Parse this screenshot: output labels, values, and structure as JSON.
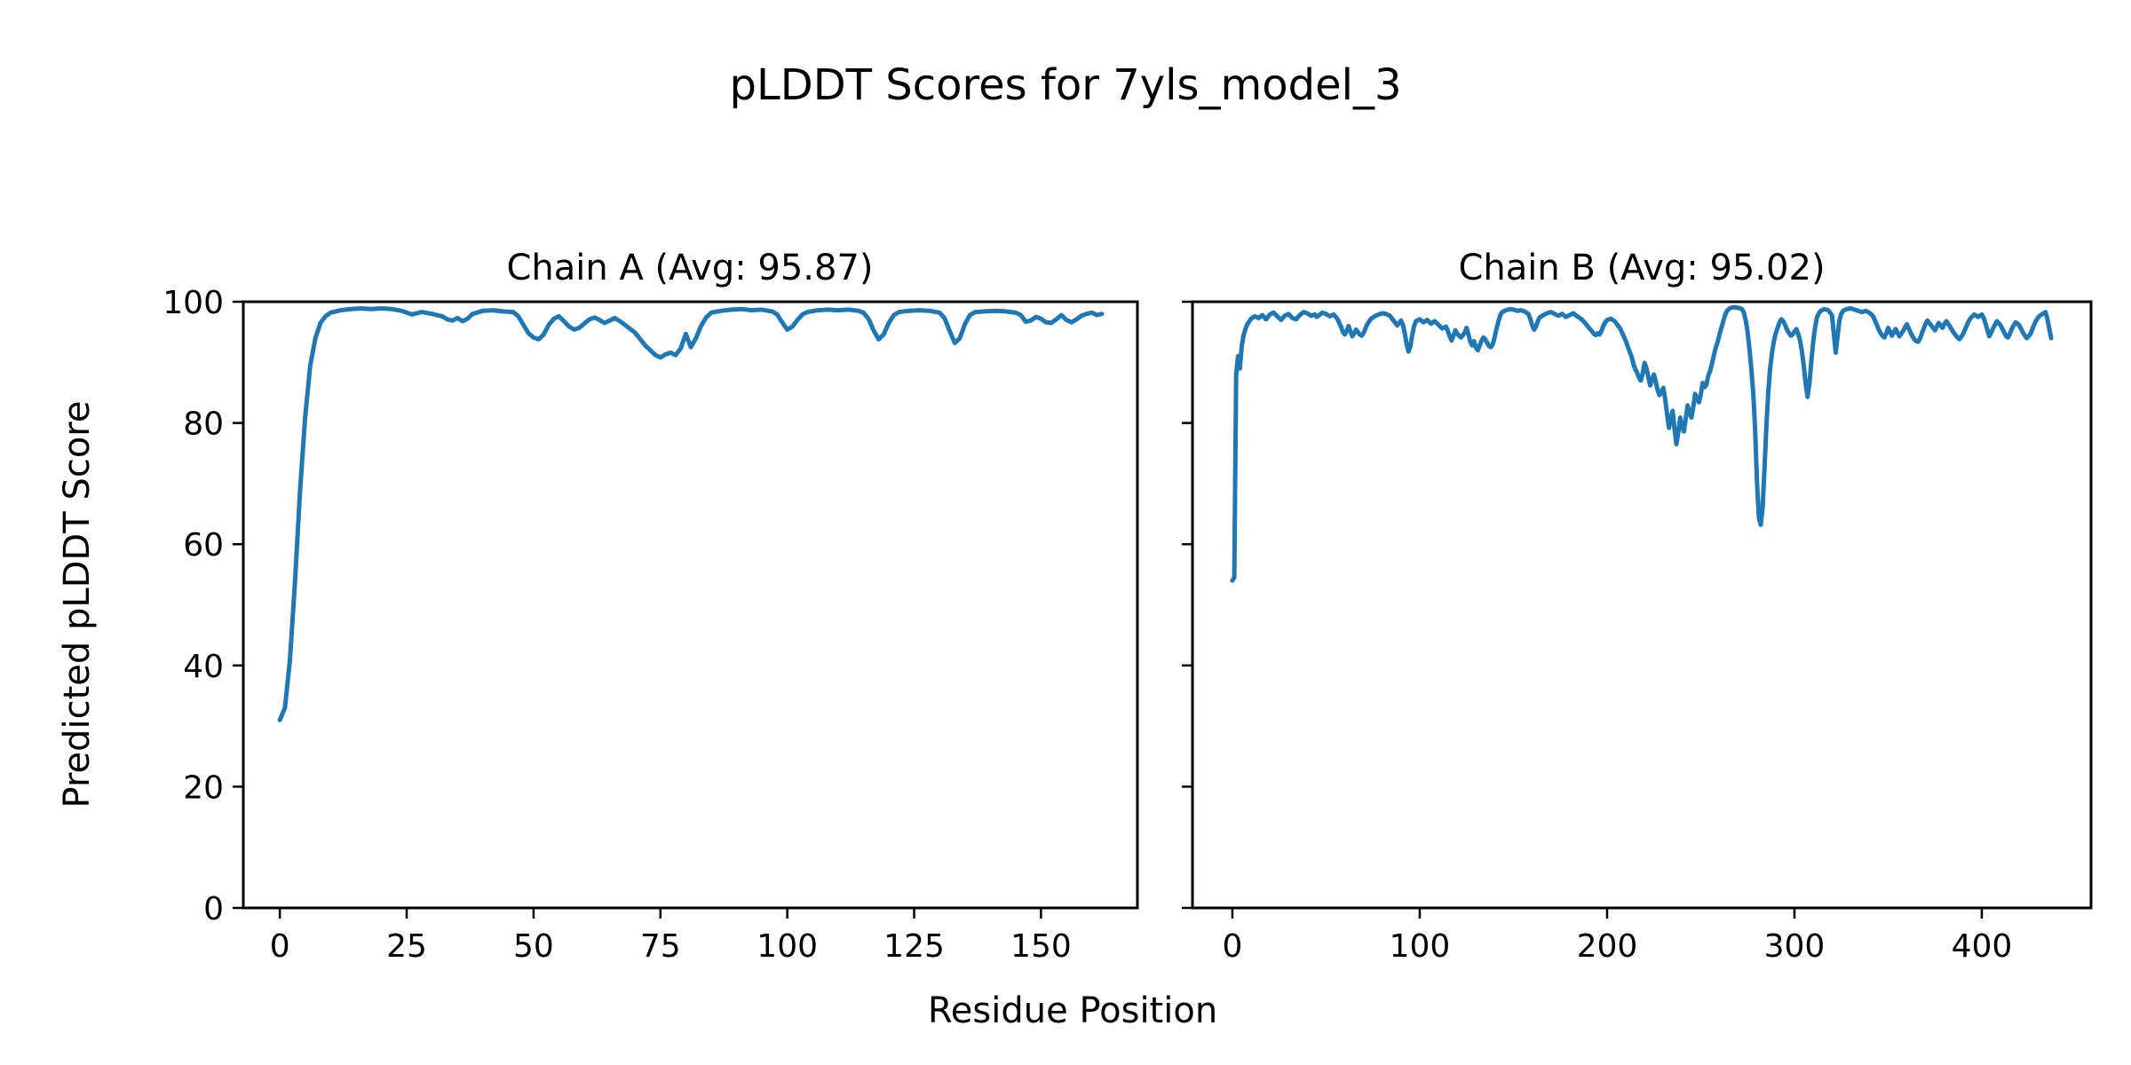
{
  "figure": {
    "title": "pLDDT Scores for 7yls_model_3",
    "xlabel": "Residue Position",
    "ylabel": "Predicted pLDDT Score",
    "background": "#ffffff",
    "line_color": "#1f77b4",
    "axis_color": "#000000"
  },
  "chart_data": [
    {
      "type": "line",
      "title": "Chain A (Avg: 95.87)",
      "legend": null,
      "grid": false,
      "xticks": [
        0,
        25,
        50,
        75,
        100,
        125,
        150
      ],
      "yticks": [
        0,
        20,
        40,
        60,
        80,
        100
      ],
      "xlim": [
        -7.2,
        169.0
      ],
      "ylim": [
        0,
        100
      ],
      "show_ytick_labels": true,
      "series": [
        {
          "name": "Chain A pLDDT",
          "color": "#1f77b4",
          "x": [
            0,
            1,
            2,
            3,
            4,
            5,
            6,
            7,
            8,
            9,
            10,
            12,
            14,
            16,
            18,
            20,
            22,
            24,
            26,
            28,
            30,
            32,
            33,
            34,
            35,
            36,
            37,
            38,
            40,
            42,
            44,
            46,
            47,
            48,
            49,
            50,
            51,
            52,
            53,
            54,
            55,
            56,
            57,
            58,
            59,
            60,
            61,
            62,
            63,
            64,
            65,
            66,
            67,
            68,
            70,
            72,
            74,
            75,
            76,
            77,
            78,
            79,
            80,
            81,
            82,
            83,
            84,
            85,
            87,
            89,
            91,
            93,
            95,
            97,
            98,
            99,
            100,
            101,
            102,
            103,
            104,
            106,
            108,
            110,
            112,
            114,
            115,
            116,
            117,
            118,
            119,
            120,
            121,
            122,
            124,
            126,
            128,
            130,
            131,
            132,
            133,
            134,
            135,
            136,
            137,
            139,
            141,
            143,
            145,
            146,
            147,
            148,
            149,
            150,
            151,
            152,
            153,
            154,
            155,
            156,
            157,
            158,
            159,
            160,
            161,
            162
          ],
          "y": [
            31,
            33,
            41,
            54,
            69,
            81,
            89.5,
            94,
            96.5,
            97.6,
            98.2,
            98.6,
            98.8,
            98.9,
            98.8,
            98.9,
            98.8,
            98.5,
            97.9,
            98.3,
            98.0,
            97.6,
            97.1,
            96.9,
            97.3,
            96.8,
            97.2,
            98.0,
            98.5,
            98.6,
            98.4,
            98.3,
            97.6,
            96.2,
            94.8,
            94.1,
            93.8,
            94.6,
            96.2,
            97.2,
            97.6,
            96.8,
            95.9,
            95.4,
            95.7,
            96.4,
            97.1,
            97.4,
            97.0,
            96.5,
            96.9,
            97.3,
            96.8,
            96.2,
            94.9,
            92.8,
            91.2,
            90.8,
            91.3,
            91.6,
            91.2,
            92.3,
            94.7,
            92.5,
            94.0,
            96.0,
            97.4,
            98.2,
            98.5,
            98.7,
            98.8,
            98.6,
            98.7,
            98.4,
            97.9,
            96.6,
            95.4,
            95.9,
            97.0,
            97.9,
            98.3,
            98.6,
            98.7,
            98.6,
            98.7,
            98.5,
            98.2,
            97.2,
            95.3,
            93.8,
            94.6,
            96.5,
            97.8,
            98.3,
            98.5,
            98.6,
            98.5,
            98.2,
            97.3,
            95.2,
            93.2,
            94.0,
            96.3,
            97.8,
            98.3,
            98.4,
            98.5,
            98.4,
            98.2,
            97.8,
            96.7,
            96.9,
            97.5,
            97.2,
            96.6,
            96.5,
            97.1,
            97.8,
            97.0,
            96.6,
            97.1,
            97.7,
            98.0,
            98.2,
            97.8,
            98.0
          ]
        }
      ]
    },
    {
      "type": "line",
      "title": "Chain B (Avg: 95.02)",
      "legend": null,
      "grid": false,
      "xticks": [
        0,
        100,
        200,
        300,
        400
      ],
      "yticks": [
        0,
        20,
        40,
        60,
        80,
        100
      ],
      "xlim": [
        -21.3,
        458.3
      ],
      "ylim": [
        0,
        100
      ],
      "show_ytick_labels": false,
      "series": [
        {
          "name": "Chain B pLDDT",
          "color": "#1f77b4",
          "x": [
            0,
            1,
            2,
            3,
            4,
            5,
            6,
            7,
            8,
            10,
            12,
            14,
            16,
            18,
            20,
            22,
            24,
            26,
            28,
            30,
            32,
            34,
            36,
            38,
            40,
            42,
            44,
            45,
            46,
            48,
            50,
            52,
            54,
            56,
            58,
            59,
            60,
            61,
            62,
            63,
            64,
            65,
            66,
            67,
            68,
            69,
            70,
            71,
            72,
            74,
            76,
            78,
            80,
            82,
            84,
            86,
            88,
            89,
            90,
            91,
            92,
            93,
            94,
            95,
            96,
            97,
            98,
            100,
            102,
            104,
            106,
            108,
            110,
            112,
            114,
            115,
            116,
            117,
            118,
            119,
            120,
            122,
            124,
            125,
            126,
            127,
            128,
            129,
            130,
            131,
            132,
            133,
            134,
            135,
            136,
            137,
            138,
            139,
            140,
            141,
            142,
            143,
            144,
            146,
            148,
            150,
            152,
            154,
            156,
            158,
            159,
            160,
            161,
            162,
            163,
            164,
            166,
            168,
            170,
            172,
            174,
            176,
            178,
            180,
            182,
            184,
            186,
            188,
            190,
            192,
            193,
            194,
            195,
            196,
            197,
            198,
            199,
            200,
            202,
            204,
            205,
            206,
            207,
            208,
            209,
            210,
            211,
            212,
            213,
            214,
            215,
            216,
            217,
            218,
            219,
            220,
            221,
            222,
            223,
            224,
            225,
            226,
            227,
            228,
            229,
            230,
            231,
            232,
            233,
            234,
            235,
            236,
            237,
            238,
            239,
            240,
            241,
            242,
            243,
            244,
            245,
            246,
            247,
            248,
            249,
            250,
            251,
            252,
            253,
            254,
            255,
            256,
            257,
            258,
            259,
            260,
            261,
            262,
            263,
            264,
            265,
            266,
            268,
            270,
            272,
            273,
            274,
            275,
            276,
            277,
            278,
            279,
            280,
            281,
            282,
            283,
            284,
            285,
            286,
            287,
            288,
            289,
            290,
            291,
            292,
            293,
            294,
            295,
            296,
            297,
            298,
            299,
            300,
            301,
            302,
            303,
            304,
            305,
            306,
            307,
            308,
            309,
            310,
            311,
            312,
            313,
            314,
            316,
            318,
            320,
            321,
            322,
            323,
            324,
            325,
            326,
            328,
            330,
            332,
            334,
            336,
            338,
            340,
            342,
            343,
            344,
            345,
            346,
            347,
            348,
            349,
            350,
            351,
            352,
            353,
            354,
            355,
            356,
            357,
            358,
            359,
            360,
            361,
            362,
            363,
            364,
            365,
            366,
            367,
            368,
            369,
            370,
            371,
            372,
            373,
            374,
            375,
            376,
            377,
            378,
            379,
            380,
            381,
            382,
            383,
            384,
            385,
            386,
            387,
            388,
            389,
            390,
            391,
            392,
            393,
            394,
            395,
            396,
            397,
            398,
            399,
            400,
            401,
            402,
            403,
            404,
            405,
            406,
            407,
            408,
            409,
            410,
            411,
            412,
            413,
            414,
            415,
            416,
            417,
            418,
            419,
            420,
            421,
            422,
            423,
            424,
            425,
            426,
            427,
            428,
            429,
            430,
            431,
            432,
            433,
            434,
            435,
            436,
            437
          ],
          "y": [
            54,
            54.5,
            88,
            91,
            89,
            92.7,
            94.5,
            95.5,
            96.3,
            97.2,
            97.6,
            97.3,
            97.8,
            97.1,
            97.9,
            98.2,
            97.6,
            97.0,
            97.7,
            98.0,
            97.3,
            97.1,
            97.8,
            98.3,
            98.1,
            97.7,
            97.9,
            97.5,
            97.7,
            98.2,
            98.0,
            97.6,
            97.9,
            97.2,
            95.9,
            95.0,
            94.6,
            95.2,
            96.0,
            95.1,
            94.3,
            94.8,
            95.4,
            95.0,
            94.6,
            94.4,
            94.8,
            95.6,
            96.3,
            97.2,
            97.6,
            97.9,
            98.1,
            98.0,
            97.7,
            96.9,
            96.1,
            96.5,
            96.9,
            96.2,
            94.8,
            93.0,
            91.8,
            92.6,
            94.5,
            96.0,
            96.8,
            97.1,
            96.6,
            97.0,
            96.4,
            96.8,
            96.2,
            95.6,
            95.9,
            95.2,
            94.3,
            93.6,
            94.4,
            95.3,
            94.7,
            94.1,
            94.9,
            95.7,
            94.6,
            93.4,
            92.8,
            93.5,
            92.4,
            92.0,
            92.8,
            93.6,
            94.1,
            93.8,
            93.2,
            92.7,
            92.5,
            93.0,
            94.2,
            95.6,
            96.8,
            97.8,
            98.3,
            98.6,
            98.8,
            98.7,
            98.5,
            98.6,
            98.4,
            98.0,
            97.2,
            96.1,
            95.4,
            95.9,
            96.8,
            97.4,
            97.8,
            98.1,
            98.3,
            98.0,
            97.7,
            98.0,
            97.5,
            97.8,
            98.1,
            97.6,
            97.2,
            96.6,
            95.8,
            95.1,
            94.7,
            94.5,
            94.8,
            94.6,
            95.2,
            96.0,
            96.6,
            97.0,
            97.2,
            96.8,
            96.4,
            96.0,
            95.6,
            94.9,
            94.2,
            93.5,
            92.6,
            91.8,
            91.0,
            89.8,
            88.9,
            88.3,
            87.5,
            87.0,
            88.2,
            89.9,
            89.0,
            87.6,
            86.2,
            87.1,
            88.0,
            86.8,
            85.4,
            84.6,
            85.2,
            85.8,
            83.9,
            81.5,
            79.2,
            80.6,
            82.0,
            79.0,
            76.5,
            78.4,
            80.9,
            79.3,
            78.6,
            80.8,
            82.9,
            81.7,
            80.9,
            82.6,
            84.8,
            84.0,
            83.4,
            84.7,
            86.6,
            85.9,
            86.3,
            87.8,
            88.6,
            89.8,
            91.2,
            92.4,
            93.4,
            94.6,
            95.7,
            96.8,
            97.8,
            98.5,
            98.8,
            99.0,
            99.1,
            99.0,
            98.8,
            98.2,
            96.9,
            95.0,
            92.2,
            88.9,
            84.8,
            78.9,
            70.2,
            64.4,
            63.2,
            66.0,
            72.4,
            79.3,
            84.9,
            88.9,
            91.6,
            93.5,
            94.8,
            95.7,
            96.6,
            97.1,
            96.8,
            96.2,
            95.4,
            94.9,
            94.4,
            94.6,
            95.1,
            95.5,
            94.7,
            93.6,
            91.8,
            89.4,
            86.5,
            84.3,
            86.6,
            90.2,
            93.4,
            95.8,
            97.4,
            98.1,
            98.5,
            98.8,
            98.6,
            97.8,
            94.8,
            91.6,
            94.2,
            96.9,
            98.0,
            98.5,
            98.8,
            98.9,
            98.7,
            98.5,
            98.3,
            98.5,
            98.2,
            97.6,
            96.9,
            96.2,
            95.4,
            94.8,
            94.4,
            94.1,
            94.8,
            95.7,
            95.1,
            94.4,
            94.9,
            95.5,
            94.9,
            94.3,
            94.7,
            95.2,
            95.8,
            96.3,
            95.6,
            94.9,
            94.3,
            93.8,
            93.5,
            93.4,
            93.9,
            94.8,
            95.6,
            96.4,
            96.9,
            96.5,
            96.1,
            95.7,
            95.3,
            95.9,
            96.5,
            96.1,
            95.7,
            96.3,
            96.8,
            96.4,
            95.9,
            95.4,
            94.9,
            94.5,
            94.1,
            93.8,
            94.2,
            94.7,
            95.4,
            96.1,
            96.8,
            97.3,
            97.6,
            97.9,
            97.7,
            97.5,
            97.7,
            97.9,
            97.3,
            96.4,
            95.3,
            94.3,
            94.9,
            95.6,
            96.2,
            96.8,
            96.5,
            96.1,
            95.5,
            94.9,
            94.3,
            94.1,
            94.7,
            95.5,
            96.1,
            96.6,
            96.4,
            96.1,
            95.5,
            94.9,
            94.4,
            94.0,
            94.3,
            94.7,
            95.5,
            96.3,
            96.9,
            97.4,
            97.7,
            97.9,
            98.1,
            98.3,
            97.2,
            95.6,
            94.0
          ]
        }
      ]
    }
  ]
}
